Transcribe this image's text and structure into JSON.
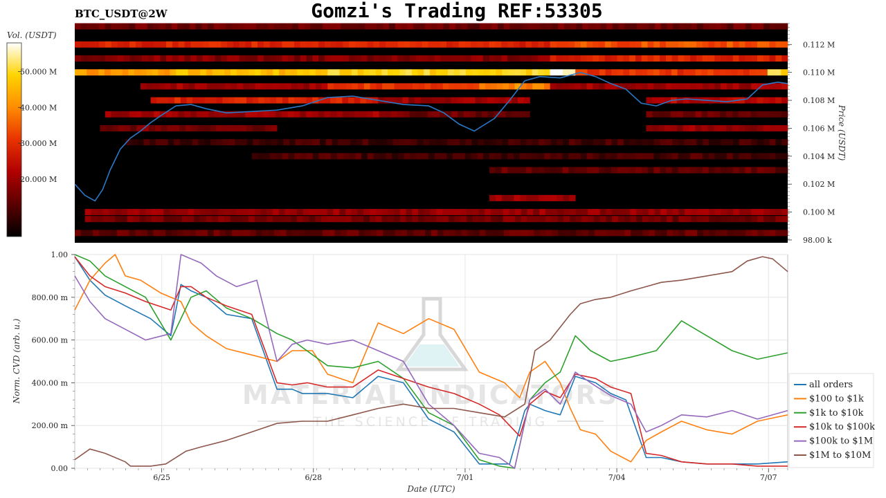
{
  "header": {
    "title": "Gomzi's Trading REF:53305",
    "symbol": "BTC_USDT@2W"
  },
  "colorbar": {
    "label": "Vol. (USDT)",
    "ticks": [
      "50.000 M",
      "40.000 M",
      "30.000 M",
      "20.000 M"
    ],
    "tick_values": [
      50,
      40,
      30,
      20
    ],
    "range": [
      4,
      58
    ],
    "colormap": [
      "#000000",
      "#5a0000",
      "#b00000",
      "#e83200",
      "#ff8c00",
      "#ffd400",
      "#ffffff"
    ]
  },
  "watermark": {
    "line1": "MATERIAL INDICATORS",
    "line2": "THE SCIENCE OF TRADING"
  },
  "chart_data": [
    {
      "type": "heatmap",
      "ylabel": "Price (USDT)",
      "y_ticks": [
        "0.112 M",
        "0.110 M",
        "0.108 M",
        "0.106 M",
        "0.104 M",
        "0.102 M",
        "0.100 M",
        "98.00 k"
      ],
      "y_tick_values": [
        112000,
        110000,
        108000,
        106000,
        104000,
        102000,
        100000,
        98000
      ],
      "ylim": [
        97800,
        113500
      ],
      "x_days": [
        0,
        14.1
      ],
      "price_series": {
        "color": "#2b78c6",
        "x": [
          0,
          0.2,
          0.4,
          0.55,
          0.7,
          0.9,
          1.1,
          1.3,
          1.5,
          1.7,
          2.0,
          2.3,
          2.6,
          3.0,
          3.5,
          4.0,
          4.5,
          5.0,
          5.5,
          6.0,
          6.5,
          7.0,
          7.3,
          7.6,
          7.9,
          8.3,
          8.6,
          8.9,
          9.2,
          9.6,
          10.0,
          10.3,
          10.6,
          10.9,
          11.2,
          11.5,
          11.8,
          12.1,
          12.5,
          12.9,
          13.3,
          13.6,
          13.9,
          14.1
        ],
        "y": [
          102000,
          101200,
          100800,
          101600,
          103000,
          104500,
          105300,
          105800,
          106400,
          106900,
          107600,
          107700,
          107400,
          107100,
          107200,
          107300,
          107600,
          108200,
          108300,
          108000,
          107700,
          107600,
          107100,
          106300,
          105800,
          106700,
          108000,
          109400,
          109700,
          109600,
          110000,
          109700,
          109200,
          108800,
          107800,
          107600,
          108000,
          108100,
          108000,
          107900,
          108100,
          109100,
          109300,
          109200
        ]
      },
      "bands": [
        {
          "price": 113300,
          "intensity": [
            [
              0,
              14.1,
              0.2
            ]
          ]
        },
        {
          "price": 112000,
          "intensity": [
            [
              0,
              9.4,
              0.45
            ],
            [
              9.4,
              14.1,
              0.55
            ]
          ]
        },
        {
          "price": 111000,
          "intensity": [
            [
              0,
              9.4,
              0.25
            ],
            [
              9.4,
              14.1,
              0.45
            ]
          ]
        },
        {
          "price": 110000,
          "intensity": [
            [
              0,
              2.0,
              0.7
            ],
            [
              2.0,
              5.0,
              0.78
            ],
            [
              5.0,
              9.4,
              0.84
            ],
            [
              9.4,
              9.9,
              1.0
            ],
            [
              9.9,
              13.7,
              0.5
            ],
            [
              13.7,
              14.1,
              0.85
            ]
          ]
        },
        {
          "price": 109000,
          "intensity": [
            [
              1.3,
              5.0,
              0.3
            ],
            [
              5.0,
              8.0,
              0.5
            ],
            [
              8.0,
              9.4,
              0.65
            ],
            [
              9.4,
              14.1,
              0.3
            ]
          ]
        },
        {
          "price": 108000,
          "intensity": [
            [
              1.5,
              6.0,
              0.45
            ],
            [
              6.0,
              9.0,
              0.3
            ],
            [
              11.3,
              14.1,
              0.35
            ]
          ]
        },
        {
          "price": 107000,
          "intensity": [
            [
              0.6,
              6.5,
              0.3
            ],
            [
              6.5,
              9.0,
              0.2
            ],
            [
              11.3,
              14.1,
              0.2
            ]
          ]
        },
        {
          "price": 106000,
          "intensity": [
            [
              0.5,
              4.0,
              0.22
            ],
            [
              11.3,
              14.1,
              0.28
            ]
          ]
        },
        {
          "price": 105000,
          "intensity": [
            [
              1.0,
              14.1,
              0.12
            ]
          ]
        },
        {
          "price": 104000,
          "intensity": [
            [
              3.5,
              14.1,
              0.13
            ]
          ]
        },
        {
          "price": 103000,
          "intensity": [
            [
              8.2,
              14.1,
              0.18
            ]
          ]
        },
        {
          "price": 101000,
          "intensity": [
            [
              8.2,
              9.9,
              0.3
            ]
          ]
        },
        {
          "price": 100000,
          "intensity": [
            [
              0.2,
              14.1,
              0.28
            ]
          ]
        },
        {
          "price": 99500,
          "intensity": [
            [
              0.2,
              14.1,
              0.22
            ]
          ]
        },
        {
          "price": 98500,
          "intensity": [
            [
              0,
              14.1,
              0.18
            ]
          ]
        }
      ]
    },
    {
      "type": "line",
      "xlabel": "Date (UTC)",
      "ylabel": "Norm. CVD (arb. u.)",
      "x_ticks": [
        "6/25",
        "6/28",
        "7/01",
        "7/04",
        "7/07"
      ],
      "x_tick_positions": [
        1.72,
        4.72,
        7.72,
        10.72,
        13.72
      ],
      "xlim": [
        0,
        14.1
      ],
      "y_ticks": [
        "1.00",
        "800.00 m",
        "600.00 m",
        "400.00 m",
        "200.00 m",
        "0.00"
      ],
      "y_tick_values": [
        1.0,
        0.8,
        0.6,
        0.4,
        0.2,
        0.0
      ],
      "ylim": [
        0,
        1.0
      ],
      "grid": true,
      "legend_position": "bottom-right",
      "series": [
        {
          "name": "all orders",
          "color": "#1f77b4",
          "x": [
            0,
            0.3,
            0.6,
            1.0,
            1.5,
            1.9,
            2.1,
            2.3,
            2.6,
            3.0,
            3.5,
            4.0,
            4.3,
            4.5,
            5.0,
            5.5,
            6.0,
            6.5,
            7.0,
            7.5,
            8.0,
            8.3,
            8.6,
            8.9,
            9.0,
            9.3,
            9.6,
            9.9,
            10.3,
            10.6,
            10.9,
            11.3,
            11.6,
            12.0,
            12.5,
            13.0,
            13.5,
            14.1
          ],
          "y": [
            0.99,
            0.88,
            0.81,
            0.76,
            0.7,
            0.62,
            0.86,
            0.83,
            0.8,
            0.72,
            0.7,
            0.37,
            0.37,
            0.35,
            0.35,
            0.33,
            0.43,
            0.4,
            0.23,
            0.17,
            0.02,
            0.02,
            0.02,
            0.27,
            0.3,
            0.27,
            0.25,
            0.43,
            0.4,
            0.35,
            0.32,
            0.05,
            0.05,
            0.03,
            0.02,
            0.02,
            0.02,
            0.03
          ]
        },
        {
          "name": "$100 to $1k",
          "color": "#ff7f0e",
          "x": [
            0,
            0.3,
            0.6,
            0.8,
            1.0,
            1.3,
            1.7,
            2.1,
            2.3,
            2.6,
            3.0,
            3.5,
            4.0,
            4.3,
            4.7,
            5.0,
            5.5,
            6.0,
            6.5,
            7.0,
            7.5,
            8.0,
            8.5,
            8.8,
            9.0,
            9.3,
            9.6,
            9.8,
            10.0,
            10.3,
            10.6,
            11.0,
            11.3,
            11.6,
            12.0,
            12.5,
            13.0,
            13.5,
            14.1
          ],
          "y": [
            0.74,
            0.88,
            0.96,
            1.0,
            0.9,
            0.88,
            0.82,
            0.78,
            0.68,
            0.62,
            0.56,
            0.53,
            0.5,
            0.55,
            0.55,
            0.44,
            0.4,
            0.68,
            0.63,
            0.7,
            0.65,
            0.45,
            0.4,
            0.33,
            0.45,
            0.5,
            0.4,
            0.28,
            0.18,
            0.16,
            0.08,
            0.03,
            0.13,
            0.17,
            0.22,
            0.18,
            0.16,
            0.22,
            0.25
          ]
        },
        {
          "name": "$1k to $10k",
          "color": "#2ca02c",
          "x": [
            0,
            0.3,
            0.6,
            1.0,
            1.4,
            1.9,
            2.3,
            2.6,
            3.0,
            3.5,
            4.0,
            4.3,
            5.0,
            5.5,
            6.0,
            6.5,
            7.0,
            7.5,
            8.0,
            8.4,
            8.7,
            9.0,
            9.3,
            9.6,
            9.9,
            10.2,
            10.6,
            11.0,
            11.5,
            12.0,
            12.5,
            13.0,
            13.5,
            14.1
          ],
          "y": [
            1.0,
            0.97,
            0.9,
            0.85,
            0.8,
            0.6,
            0.8,
            0.83,
            0.75,
            0.7,
            0.63,
            0.6,
            0.48,
            0.47,
            0.5,
            0.42,
            0.26,
            0.2,
            0.04,
            0.01,
            0.0,
            0.32,
            0.4,
            0.45,
            0.62,
            0.55,
            0.5,
            0.52,
            0.55,
            0.69,
            0.62,
            0.55,
            0.51,
            0.54
          ]
        },
        {
          "name": "$10k to $100k",
          "color": "#d62728",
          "x": [
            0,
            0.3,
            0.6,
            1.0,
            1.4,
            1.9,
            2.1,
            2.3,
            2.6,
            3.0,
            3.5,
            4.0,
            4.3,
            4.6,
            5.0,
            5.5,
            6.0,
            6.5,
            7.0,
            7.5,
            8.0,
            8.4,
            8.8,
            9.0,
            9.3,
            9.6,
            9.9,
            10.3,
            10.6,
            11.0,
            11.3,
            11.6,
            12.0,
            12.5,
            13.0,
            13.5,
            14.1
          ],
          "y": [
            0.99,
            0.9,
            0.85,
            0.82,
            0.78,
            0.74,
            0.85,
            0.85,
            0.8,
            0.76,
            0.72,
            0.4,
            0.39,
            0.4,
            0.38,
            0.38,
            0.46,
            0.42,
            0.38,
            0.35,
            0.3,
            0.25,
            0.15,
            0.3,
            0.36,
            0.33,
            0.44,
            0.42,
            0.38,
            0.35,
            0.07,
            0.06,
            0.03,
            0.02,
            0.02,
            0.01,
            0.01
          ]
        },
        {
          "name": "$100k to $1M",
          "color": "#9467bd",
          "x": [
            0,
            0.3,
            0.6,
            1.0,
            1.4,
            1.9,
            2.1,
            2.3,
            2.5,
            2.8,
            3.2,
            3.6,
            4.0,
            4.3,
            4.6,
            5.0,
            5.5,
            6.0,
            6.5,
            7.0,
            7.5,
            8.0,
            8.4,
            8.7,
            9.0,
            9.3,
            9.6,
            9.9,
            10.2,
            10.6,
            11.0,
            11.3,
            11.6,
            12.0,
            12.5,
            13.0,
            13.5,
            14.1
          ],
          "y": [
            0.9,
            0.78,
            0.7,
            0.65,
            0.6,
            0.63,
            1.0,
            0.98,
            0.96,
            0.9,
            0.85,
            0.88,
            0.5,
            0.58,
            0.6,
            0.58,
            0.6,
            0.55,
            0.5,
            0.3,
            0.2,
            0.07,
            0.05,
            0.0,
            0.32,
            0.37,
            0.3,
            0.45,
            0.4,
            0.34,
            0.3,
            0.17,
            0.2,
            0.25,
            0.24,
            0.27,
            0.23,
            0.27
          ]
        },
        {
          "name": "$1M to $10M",
          "color": "#8c564b",
          "x": [
            0,
            0.3,
            0.6,
            1.0,
            1.1,
            1.5,
            1.8,
            2.2,
            2.5,
            3.0,
            3.5,
            4.0,
            4.5,
            5.0,
            5.5,
            6.0,
            6.5,
            7.0,
            7.5,
            8.0,
            8.5,
            8.9,
            9.1,
            9.4,
            9.8,
            10.0,
            10.3,
            10.6,
            11.0,
            11.3,
            11.6,
            12.0,
            12.5,
            13.0,
            13.3,
            13.6,
            13.8,
            14.1
          ],
          "y": [
            0.04,
            0.09,
            0.07,
            0.03,
            0.01,
            0.01,
            0.02,
            0.08,
            0.1,
            0.13,
            0.17,
            0.21,
            0.22,
            0.22,
            0.25,
            0.28,
            0.3,
            0.28,
            0.28,
            0.26,
            0.24,
            0.3,
            0.55,
            0.6,
            0.72,
            0.77,
            0.79,
            0.8,
            0.83,
            0.85,
            0.87,
            0.88,
            0.9,
            0.92,
            0.97,
            0.99,
            0.98,
            0.92
          ]
        }
      ]
    }
  ]
}
